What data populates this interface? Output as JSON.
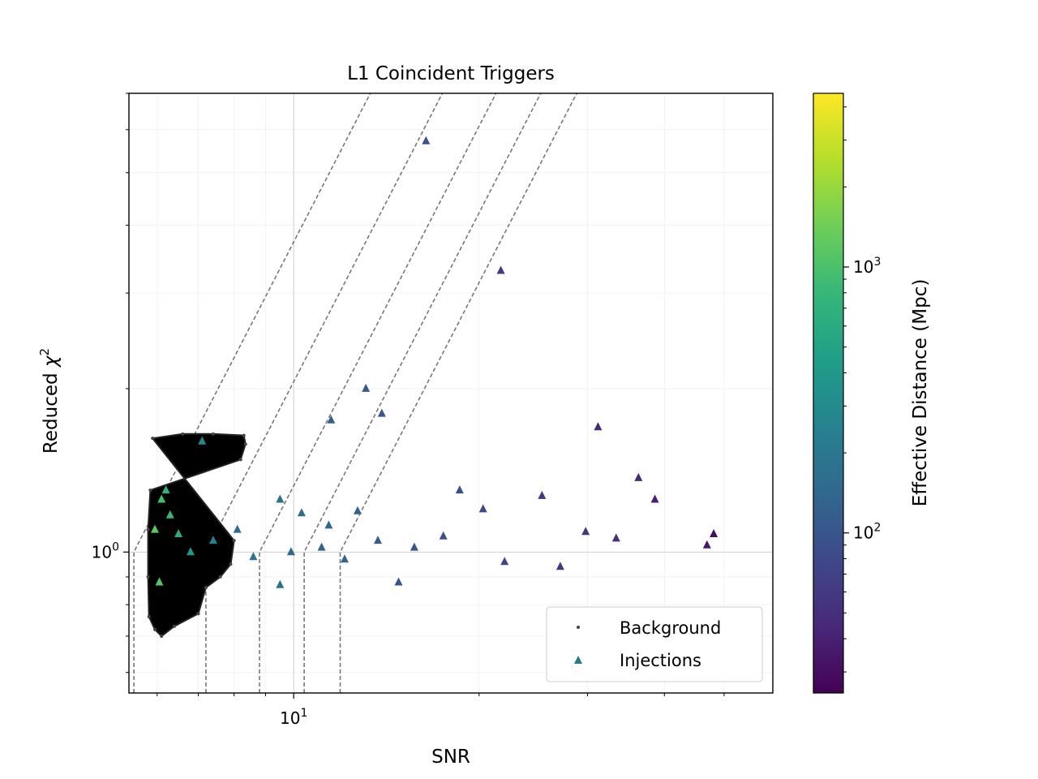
{
  "chart_data": {
    "type": "scatter",
    "title": "L1 Coincident Triggers",
    "xlabel": "SNR",
    "ylabel_text": "Reduced ",
    "ylabel_symbol": "χ",
    "ylabel_sup": "2",
    "xscale": "log",
    "yscale": "log",
    "xlim": [
      5.4,
      60
    ],
    "ylim": [
      0.55,
      7.0
    ],
    "xticks": [
      {
        "value": 10,
        "base": "10",
        "exp": "1"
      }
    ],
    "yticks": [
      {
        "value": 1,
        "base": "10",
        "exp": "0"
      }
    ],
    "grid": true,
    "legend_position": "lower-right",
    "series": [
      {
        "name": "Background",
        "marker": "dot",
        "color": "#000000",
        "region": {
          "x_min": 5.8,
          "x_max": 8.4,
          "y_min": 0.7,
          "y_max": 1.65
        },
        "points": [
          [
            5.9,
            1.62
          ],
          [
            6.6,
            1.65
          ],
          [
            7.4,
            1.65
          ],
          [
            8.3,
            1.64
          ],
          [
            8.35,
            1.58
          ],
          [
            8.2,
            1.48
          ],
          [
            5.85,
            1.3
          ],
          [
            5.8,
            1.1
          ],
          [
            5.8,
            0.9
          ],
          [
            5.82,
            0.76
          ],
          [
            5.95,
            0.72
          ],
          [
            6.1,
            0.7
          ],
          [
            6.4,
            0.73
          ],
          [
            7.0,
            0.77
          ],
          [
            7.2,
            0.86
          ],
          [
            7.6,
            0.9
          ],
          [
            7.9,
            0.95
          ],
          [
            8.0,
            1.05
          ]
        ]
      },
      {
        "name": "Injections",
        "marker": "triangle",
        "color_by": "effective_distance_mpc",
        "points": [
          [
            16.4,
            5.72,
            90
          ],
          [
            21.7,
            3.3,
            60
          ],
          [
            13.1,
            2.0,
            110
          ],
          [
            13.9,
            1.8,
            100
          ],
          [
            11.5,
            1.75,
            120
          ],
          [
            31.2,
            1.7,
            45
          ],
          [
            5.95,
            1.1,
            1200
          ],
          [
            6.1,
            1.25,
            900
          ],
          [
            6.05,
            0.88,
            1100
          ],
          [
            6.2,
            1.3,
            700
          ],
          [
            6.5,
            1.08,
            600
          ],
          [
            7.1,
            1.6,
            300
          ],
          [
            8.1,
            1.1,
            150
          ],
          [
            9.5,
            1.25,
            160
          ],
          [
            10.3,
            1.18,
            150
          ],
          [
            11.4,
            1.12,
            140
          ],
          [
            12.1,
            0.97,
            130
          ],
          [
            13.7,
            1.05,
            110
          ],
          [
            15.7,
            1.02,
            100
          ],
          [
            17.5,
            1.07,
            95
          ],
          [
            20.3,
            1.2,
            80
          ],
          [
            22.0,
            0.96,
            75
          ],
          [
            25.3,
            1.27,
            60
          ],
          [
            29.8,
            1.09,
            55
          ],
          [
            33.4,
            1.06,
            50
          ],
          [
            36.3,
            1.37,
            45
          ],
          [
            38.6,
            1.25,
            40
          ],
          [
            46.9,
            1.03,
            35
          ],
          [
            48.1,
            1.08,
            30
          ],
          [
            27.1,
            0.94,
            60
          ],
          [
            8.6,
            0.98,
            180
          ],
          [
            9.5,
            0.87,
            170
          ],
          [
            14.8,
            0.88,
            100
          ],
          [
            12.7,
            1.19,
            120
          ],
          [
            11.1,
            1.02,
            130
          ],
          [
            9.9,
            1.0,
            140
          ],
          [
            18.6,
            1.3,
            85
          ],
          [
            6.8,
            1.0,
            400
          ],
          [
            7.4,
            1.05,
            250
          ],
          [
            6.3,
            1.17,
            800
          ]
        ]
      }
    ],
    "thresholds": {
      "snr_values": [
        5.5,
        7.2,
        8.8,
        10.4,
        11.9
      ],
      "y_start": 1.0,
      "slope": 2.2
    },
    "colorbar": {
      "label": "Effective Distance (Mpc)",
      "scale": "log",
      "range": [
        25,
        4500
      ],
      "ticks": [
        {
          "value": 100,
          "base": "10",
          "exp": "2"
        },
        {
          "value": 1000,
          "base": "10",
          "exp": "3"
        }
      ],
      "colors": [
        "#440154",
        "#482878",
        "#3e4989",
        "#31688e",
        "#26828e",
        "#1f9e89",
        "#35b779",
        "#6ece58",
        "#b5de2b",
        "#fde725"
      ]
    }
  }
}
